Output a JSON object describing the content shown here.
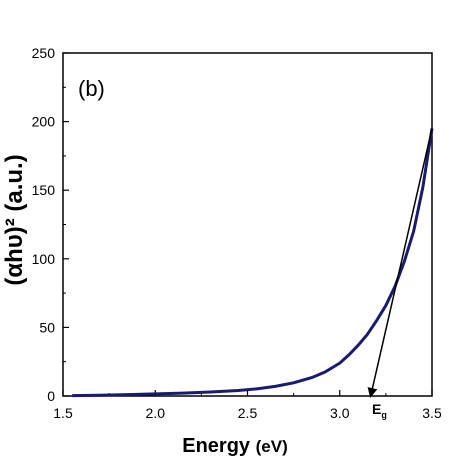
{
  "chart_data": {
    "type": "line",
    "panel_label": "(b)",
    "xlabel_main": "Energy",
    "xlabel_unit": "(eV)",
    "ylabel": "(αhυ)²  (a.u.)",
    "xlim": [
      1.5,
      3.5
    ],
    "ylim": [
      0,
      250
    ],
    "x_ticks": [
      "1.5",
      "2.0",
      "2.5",
      "3.0",
      "3.5"
    ],
    "y_ticks": [
      "0",
      "50",
      "100",
      "150",
      "200",
      "250"
    ],
    "grid": false,
    "line_color": "#1a1a6e",
    "series": [
      {
        "x": [
          1.55,
          1.7,
          1.85,
          2.0,
          2.15,
          2.3,
          2.45,
          2.55,
          2.65,
          2.75,
          2.85,
          2.92,
          3.0,
          3.05,
          3.1,
          3.15,
          3.2,
          3.25,
          3.3,
          3.35,
          3.4,
          3.45,
          3.5
        ],
        "y": [
          0.3,
          0.6,
          1.0,
          1.5,
          2.1,
          2.9,
          4.0,
          5.2,
          7.0,
          9.6,
          13.5,
          17.5,
          24,
          30,
          37,
          45,
          55,
          66,
          80,
          98,
          120,
          152,
          195
        ]
      }
    ],
    "annotation": {
      "label_main": "E",
      "label_sub": "g",
      "tangent_from": [
        3.5,
        195
      ],
      "tangent_to": [
        3.17,
        0
      ]
    }
  }
}
